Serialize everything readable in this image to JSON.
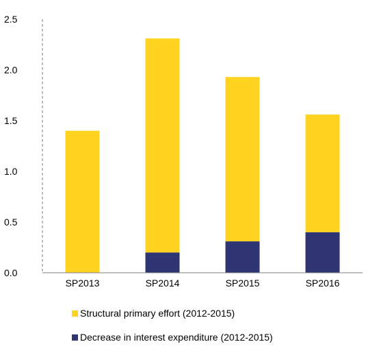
{
  "chart_data": {
    "type": "bar",
    "stacked": true,
    "title": "",
    "xlabel": "",
    "ylabel": "",
    "categories": [
      "SP2013",
      "SP2014",
      "SP2015",
      "SP2016"
    ],
    "series": [
      {
        "name": "Decrease in interest expenditure (2012-2015)",
        "values": [
          0.0,
          0.2,
          0.31,
          0.4
        ],
        "color": "#2F3472"
      },
      {
        "name": "Structural primary effort (2012-2015)",
        "values": [
          1.4,
          2.11,
          1.62,
          1.16
        ],
        "color": "#FFD320"
      }
    ],
    "ylim": [
      0,
      2.5
    ],
    "yticks": [
      "0.0",
      "0.5",
      "1.0",
      "1.5",
      "2.0",
      "2.5"
    ],
    "grid": false,
    "legend_position": "bottom"
  }
}
